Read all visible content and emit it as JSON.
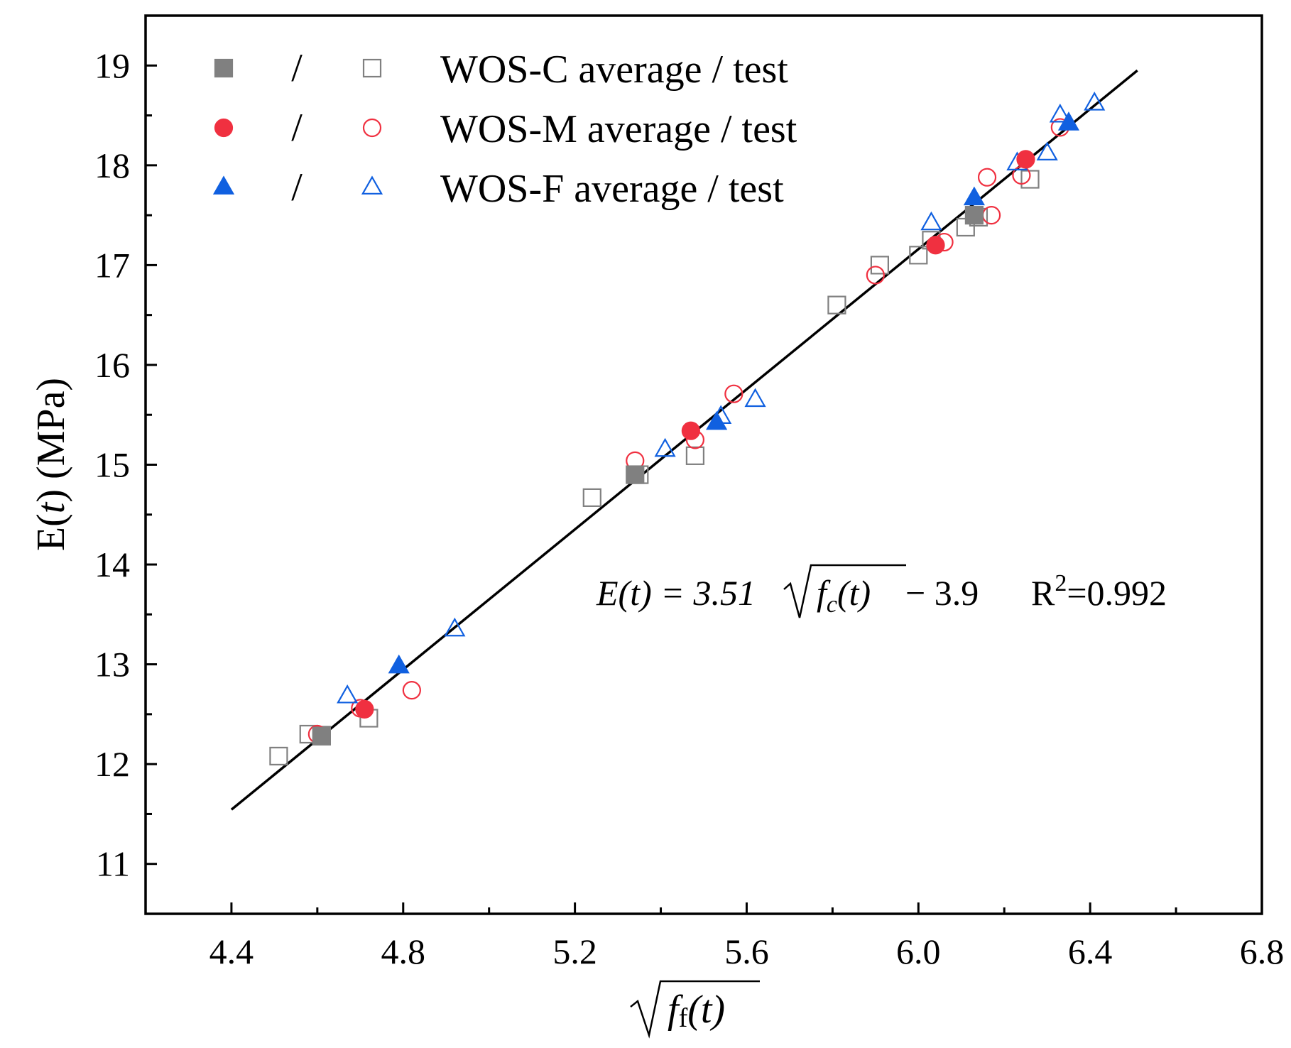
{
  "chart_data": {
    "type": "scatter",
    "ylabel": {
      "pre": "E(",
      "var": "t",
      "post": ") (MPa)"
    },
    "xlabel": {
      "main": "f",
      "sub": "f",
      "post": "(t)"
    },
    "xlim": [
      4.2,
      6.8
    ],
    "ylim": [
      10.5,
      19.5
    ],
    "x_ticks": [
      "4.4",
      "4.8",
      "5.2",
      "5.6",
      "6.0",
      "6.4",
      "6.8"
    ],
    "y_ticks": [
      "11",
      "12",
      "13",
      "14",
      "15",
      "16",
      "17",
      "18",
      "19"
    ],
    "fit_line": {
      "x": [
        4.4,
        6.51
      ],
      "slope": 3.51,
      "intercept": -3.9
    },
    "equation": {
      "lhs": "E(t) = 3.51",
      "radicand": "f",
      "radicand_sub": "c",
      "radicand_post": "(t)",
      "tail": " − 3.9",
      "r2_label": "R",
      "r2_sup": "2",
      "r2_value": "=0.992"
    },
    "legend": [
      {
        "text": "WOS-C average / test",
        "slash": "/",
        "color": "#808080",
        "marker": "square"
      },
      {
        "text": "WOS-M average / test",
        "slash": "/",
        "color": "#f03040",
        "marker": "circle"
      },
      {
        "text": "WOS-F average / test",
        "slash": "/",
        "color": "#1060e0",
        "marker": "triangle"
      }
    ],
    "series": [
      {
        "name": "WOS-C test",
        "marker": "square",
        "filled": false,
        "color": "#808080",
        "x": [
          4.51,
          4.58,
          4.61,
          4.72,
          5.24,
          5.35,
          5.48,
          5.81,
          5.91,
          6.0,
          6.03,
          6.11,
          6.14,
          6.26
        ],
        "y": [
          12.08,
          12.3,
          12.29,
          12.46,
          14.67,
          14.9,
          15.09,
          16.6,
          17.0,
          17.1,
          17.25,
          17.38,
          17.48,
          17.86
        ]
      },
      {
        "name": "WOS-C average",
        "marker": "square",
        "filled": true,
        "color": "#808080",
        "x": [
          4.61,
          5.34,
          6.13
        ],
        "y": [
          12.28,
          14.9,
          17.5
        ]
      },
      {
        "name": "WOS-M test",
        "marker": "circle",
        "filled": false,
        "color": "#f03040",
        "x": [
          4.6,
          4.7,
          4.82,
          5.34,
          5.48,
          5.57,
          5.9,
          6.06,
          6.16,
          6.17,
          6.24,
          6.33
        ],
        "y": [
          12.3,
          12.56,
          12.74,
          15.04,
          15.25,
          15.71,
          16.9,
          17.23,
          17.88,
          17.5,
          17.9,
          18.38
        ]
      },
      {
        "name": "WOS-M average",
        "marker": "circle",
        "filled": true,
        "color": "#f03040",
        "x": [
          4.71,
          5.47,
          6.04,
          6.25
        ],
        "y": [
          12.55,
          15.34,
          17.2,
          18.06
        ]
      },
      {
        "name": "WOS-F test",
        "marker": "triangle",
        "filled": false,
        "color": "#1060e0",
        "x": [
          4.67,
          4.92,
          5.41,
          5.54,
          5.62,
          6.03,
          6.23,
          6.3,
          6.33,
          6.41
        ],
        "y": [
          12.68,
          13.35,
          15.15,
          15.48,
          15.65,
          17.42,
          18.02,
          18.12,
          18.5,
          18.62
        ]
      },
      {
        "name": "WOS-F average",
        "marker": "triangle",
        "filled": true,
        "color": "#1060e0",
        "x": [
          4.79,
          5.53,
          6.13,
          6.35
        ],
        "y": [
          12.98,
          15.42,
          17.67,
          18.42
        ]
      }
    ]
  }
}
